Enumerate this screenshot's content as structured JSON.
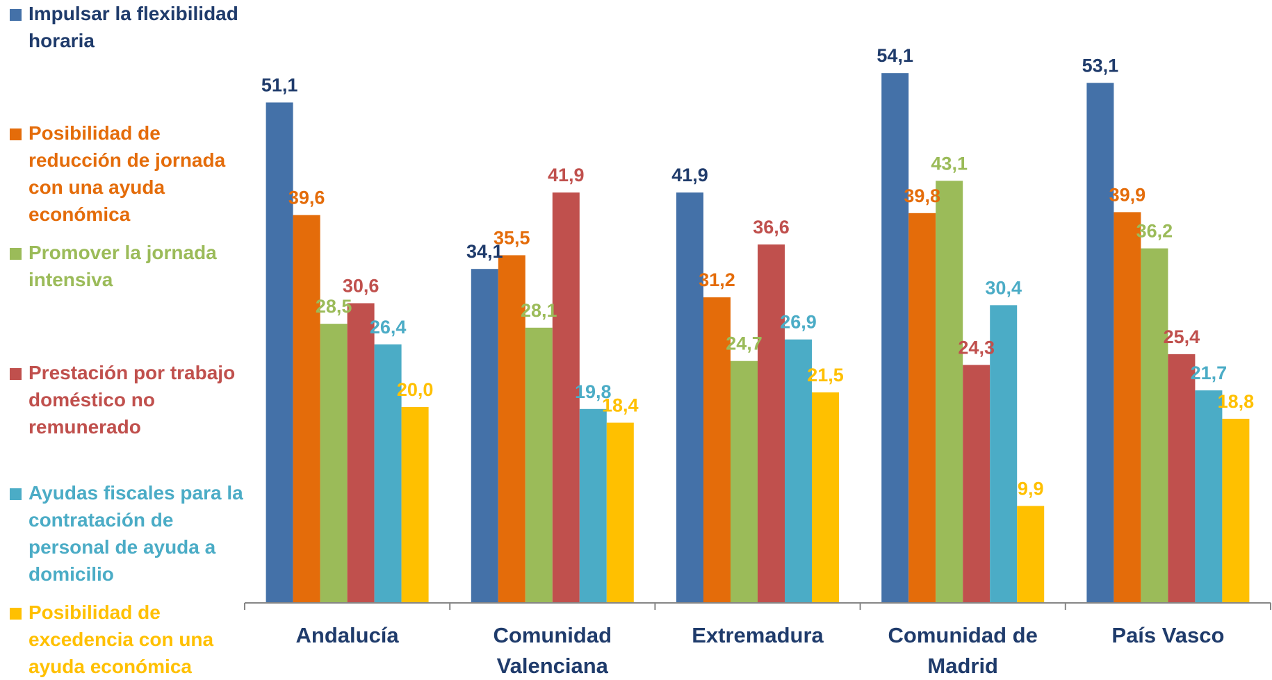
{
  "chart_data": {
    "type": "bar",
    "categories": [
      [
        "Andalucía"
      ],
      [
        "Comunidad",
        "Valenciana"
      ],
      [
        "Extremadura"
      ],
      [
        "Comunidad de",
        "Madrid"
      ],
      [
        "País Vasco"
      ]
    ],
    "series": [
      {
        "name": [
          "Impulsar la flexibilidad",
          "horaria"
        ],
        "color": "#4471A8",
        "values": [
          51.1,
          34.1,
          41.9,
          54.1,
          53.1
        ],
        "labels": [
          "51,1",
          "34,1",
          "41,9",
          "54,1",
          "53,1"
        ],
        "label_color": "#1F3B6B"
      },
      {
        "name": [
          "Posibilidad de",
          "reducción de jornada",
          "con una ayuda",
          "económica"
        ],
        "color": "#E46C0A",
        "values": [
          39.6,
          35.5,
          31.2,
          39.8,
          39.9
        ],
        "labels": [
          "39,6",
          "35,5",
          "31,2",
          "39,8",
          "39,9"
        ],
        "label_color": "#E46C0A"
      },
      {
        "name": [
          "Promover la jornada",
          "intensiva"
        ],
        "color": "#9BBB59",
        "values": [
          28.5,
          28.1,
          24.7,
          43.1,
          36.2
        ],
        "labels": [
          "28,5",
          "28,1",
          "24,7",
          "43,1",
          "36,2"
        ],
        "label_color": "#9BBB59"
      },
      {
        "name": [
          "Prestación por trabajo",
          "doméstico no",
          "remunerado"
        ],
        "color": "#C0504D",
        "values": [
          30.6,
          41.9,
          36.6,
          24.3,
          25.4
        ],
        "labels": [
          "30,6",
          "41,9",
          "36,6",
          "24,3",
          "25,4"
        ],
        "label_color": "#C0504D"
      },
      {
        "name": [
          "Ayudas fiscales para la",
          "contratación de",
          "personal de ayuda a",
          "domicilio"
        ],
        "color": "#4BACC6",
        "values": [
          26.4,
          19.8,
          26.9,
          30.4,
          21.7
        ],
        "labels": [
          "26,4",
          "19,8",
          "26,9",
          "30,4",
          "21,7"
        ],
        "label_color": "#4BACC6"
      },
      {
        "name": [
          "Posibilidad de",
          "excedencia con una",
          "ayuda económica"
        ],
        "color": "#FFC000",
        "values": [
          20.0,
          18.4,
          21.5,
          9.9,
          18.8
        ],
        "labels": [
          "20,0",
          "18,4",
          "21,5",
          "9,9",
          "18,8"
        ],
        "label_color": "#FFC000"
      }
    ],
    "title": "",
    "xlabel": "",
    "ylabel": "",
    "ylim": [
      0,
      58
    ],
    "grid": false,
    "legend": "left"
  }
}
